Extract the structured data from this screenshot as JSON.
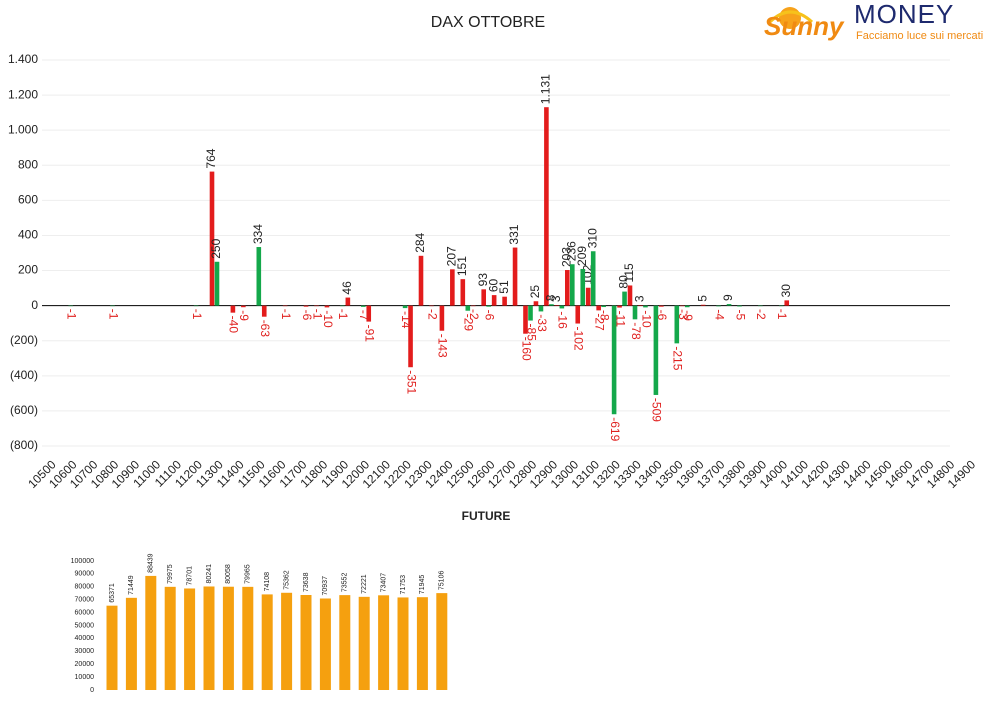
{
  "logo": {
    "brand1": "Sunny",
    "brand2": "MONEY",
    "tagline": "Facciamo luce sui mercati"
  },
  "chart_data": [
    {
      "type": "bar",
      "title": "DAX OTTOBRE",
      "categories": [
        "10500",
        null,
        "10600",
        null,
        "10700",
        null,
        "10800",
        null,
        "10900",
        null,
        "11000",
        null,
        "11100",
        null,
        "11200",
        null,
        "11300",
        null,
        "11400",
        null,
        "11500",
        null,
        "11600",
        null,
        "11700",
        null,
        "11800",
        null,
        "11900",
        null,
        "12000",
        null,
        "12100",
        null,
        "12200",
        null,
        "12300",
        null,
        "12400",
        null,
        "12500",
        null,
        "12600",
        null,
        "12700",
        null,
        "12800",
        null,
        "12900",
        null,
        "13000",
        null,
        "13100",
        null,
        "13200",
        null,
        "13300",
        null,
        "13400",
        null,
        "13500",
        null,
        "13600",
        null,
        "13700",
        null,
        "13800",
        null,
        "13900",
        null,
        "14000",
        null,
        "14100",
        null,
        "14200",
        null,
        "14300",
        null,
        "14400",
        null,
        "14500",
        null,
        "14600",
        null,
        "14700",
        null,
        "14800",
        null,
        "14900"
      ],
      "series": [
        {
          "color": "#e31c1c",
          "values": [
            null,
            null,
            null,
            null,
            null,
            null,
            null,
            null,
            null,
            null,
            null,
            null,
            null,
            null,
            null,
            null,
            764,
            null,
            -40,
            -9,
            null,
            -63,
            null,
            -1,
            null,
            -6,
            -1,
            -10,
            null,
            46,
            null,
            -91,
            null,
            null,
            null,
            -351,
            284,
            -2,
            -143,
            207,
            151,
            -2,
            93,
            60,
            51,
            331,
            -160,
            25,
            1131,
            3,
            203,
            -102,
            102,
            -27,
            null,
            -11,
            115,
            3,
            null,
            -6,
            null,
            -3,
            null,
            5,
            null,
            null,
            null,
            null,
            null,
            null,
            null,
            30,
            null,
            null,
            null,
            null,
            null,
            null,
            null,
            null,
            null,
            null,
            null,
            null,
            null,
            null,
            null,
            null,
            null
          ],
          "value_labels": [
            null,
            null,
            null,
            null,
            null,
            null,
            null,
            null,
            null,
            null,
            null,
            null,
            null,
            null,
            null,
            null,
            "764",
            null,
            "-40",
            "-9",
            null,
            "-63",
            null,
            "-1",
            null,
            "-6",
            "-1",
            "-10",
            null,
            "46",
            null,
            "-91",
            null,
            null,
            null,
            "-351",
            "284",
            "-2",
            "-143",
            "207",
            "151",
            "-2",
            "93",
            "60",
            "51",
            "331",
            "-160",
            "25",
            "1.131",
            "3",
            "203",
            "-102",
            "102",
            "-27",
            null,
            "-11",
            "115",
            "3",
            null,
            "-6",
            null,
            "-3",
            null,
            "5",
            null,
            null,
            null,
            null,
            null,
            null,
            null,
            "30",
            null,
            null,
            null,
            null,
            null,
            null,
            null,
            null,
            null,
            null,
            null,
            null,
            null,
            null,
            null,
            null,
            null
          ]
        },
        {
          "color": "#14a84b",
          "values": [
            null,
            null,
            -1,
            null,
            null,
            null,
            -1,
            null,
            null,
            null,
            null,
            null,
            null,
            null,
            -1,
            null,
            250,
            null,
            null,
            null,
            334,
            null,
            null,
            null,
            null,
            null,
            null,
            null,
            -1,
            null,
            -7,
            null,
            null,
            null,
            -14,
            null,
            null,
            null,
            null,
            null,
            -29,
            null,
            -6,
            null,
            null,
            null,
            -85,
            -33,
            8,
            -16,
            236,
            209,
            310,
            -8,
            -619,
            80,
            -78,
            -10,
            -509,
            null,
            -215,
            -9,
            null,
            null,
            -4,
            9,
            -5,
            null,
            -2,
            null,
            -1,
            null,
            null,
            null,
            null,
            null,
            null,
            null,
            null,
            null,
            null,
            null,
            null,
            null,
            null,
            null,
            null,
            null,
            null
          ]
        }
      ],
      "ylim": [
        -800,
        1400
      ],
      "yticks": [
        {
          "value": -800,
          "label": "(800)"
        },
        {
          "value": -600,
          "label": "(600)"
        },
        {
          "value": -400,
          "label": "(400)"
        },
        {
          "value": -200,
          "label": "(200)"
        },
        0,
        200,
        400,
        600,
        800,
        {
          "value": 1000,
          "label": "1.000"
        },
        {
          "value": 1200,
          "label": "1.200"
        },
        {
          "value": 1400,
          "label": "1.400"
        }
      ],
      "grid": true,
      "negative_label_color": "#e0211f"
    },
    {
      "type": "bar",
      "title": "FUTURE",
      "color": "#f5a00f",
      "values": [
        65371,
        71449,
        88439,
        79975,
        78701,
        80241,
        80058,
        79965,
        74108,
        75362,
        73638,
        70937,
        73552,
        72221,
        73407,
        71753,
        71945,
        75106
      ],
      "ylim": [
        0,
        100000
      ],
      "yticks": [
        0,
        10000,
        20000,
        30000,
        40000,
        50000,
        60000,
        70000,
        80000,
        90000,
        100000
      ],
      "grid": false
    }
  ]
}
